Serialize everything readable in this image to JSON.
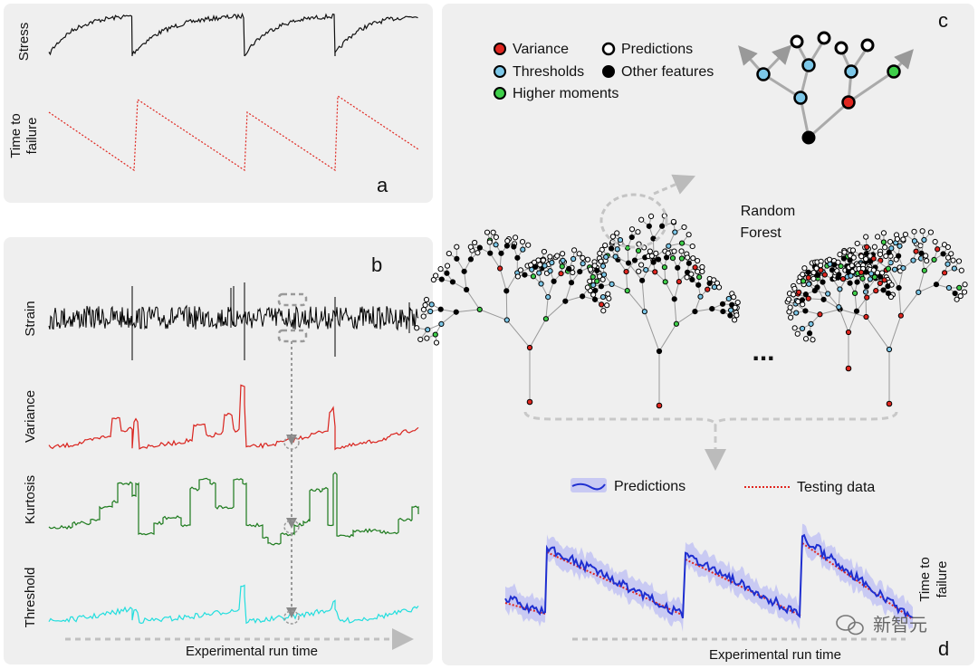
{
  "panel_a": {
    "letter": "a",
    "stress_label": "Stress",
    "ttf_label_line1": "Time to",
    "ttf_label_line2": "failure"
  },
  "panel_b": {
    "letter": "b",
    "strain_label": "Strain",
    "variance_label": "Variance",
    "kurtosis_label": "Kurtosis",
    "threshold_label": "Threshold",
    "xaxis_label": "Experimental run time"
  },
  "panel_c": {
    "letter": "c",
    "legend": [
      {
        "label": "Variance",
        "color": "#e0261f",
        "kind": "filled"
      },
      {
        "label": "Predictions",
        "color": "#ffffff",
        "kind": "ring"
      },
      {
        "label": "Thresholds",
        "color": "#7cc7e8",
        "kind": "filled"
      },
      {
        "label": "Other features",
        "color": "#000000",
        "kind": "filled"
      },
      {
        "label": "Higher moments",
        "color": "#3fcf4a",
        "kind": "filled"
      }
    ],
    "forest_label_line1": "Random",
    "forest_label_line2": "Forest",
    "ellipsis": "..."
  },
  "panel_d": {
    "letter": "d",
    "legend_predictions": "Predictions",
    "legend_testing": "Testing data",
    "ylabel_line1": "Time to",
    "ylabel_line2": "failure",
    "xaxis_label": "Experimental run time"
  },
  "watermark": "新智元",
  "colors": {
    "stress": "#111111",
    "ttf": "#e0261f",
    "variance": "#d9231d",
    "kurtosis": "#1c7a1c",
    "threshold": "#22dede",
    "prediction": "#1f2fd0",
    "band": "#b7b8ef"
  }
}
